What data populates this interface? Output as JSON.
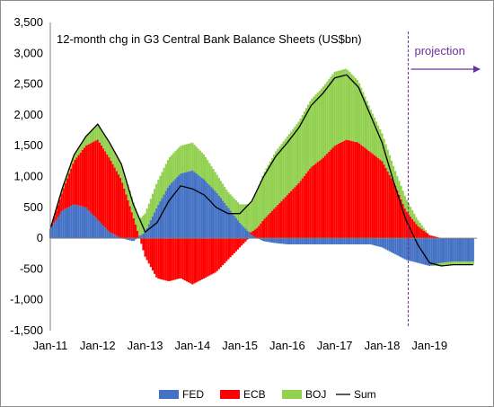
{
  "chart_data": {
    "type": "area",
    "title": "12-month chg in G3 Central Bank Balance Sheets (US$bn)",
    "xlabel": "",
    "ylabel": "",
    "ylim": [
      -1500,
      3500
    ],
    "yticks": [
      "3,500",
      "3,000",
      "2,500",
      "2,000",
      "1,500",
      "1,000",
      "500",
      "0",
      "-500",
      "-1,000",
      "-1,500"
    ],
    "ytick_values": [
      3500,
      3000,
      2500,
      2000,
      1500,
      1000,
      500,
      0,
      -500,
      -1000,
      -1500
    ],
    "xlim": [
      2011.0,
      2020.0
    ],
    "xticks": [
      "Jan-11",
      "Jan-12",
      "Jan-13",
      "Jan-14",
      "Jan-15",
      "Jan-16",
      "Jan-17",
      "Jan-18",
      "Jan-19"
    ],
    "xtick_values": [
      2011,
      2012,
      2013,
      2014,
      2015,
      2016,
      2017,
      2018,
      2019
    ],
    "stacked": true,
    "grid": false,
    "legend_position": "bottom-center",
    "annotation": {
      "text": "projection",
      "x": 2018.55,
      "color": "#7030a0"
    },
    "x": [
      2011.0,
      2011.25,
      2011.5,
      2011.75,
      2012.0,
      2012.25,
      2012.5,
      2012.75,
      2013.0,
      2013.25,
      2013.5,
      2013.75,
      2014.0,
      2014.25,
      2014.5,
      2014.75,
      2015.0,
      2015.25,
      2015.5,
      2015.75,
      2016.0,
      2016.25,
      2016.5,
      2016.75,
      2017.0,
      2017.25,
      2017.5,
      2017.75,
      2018.0,
      2018.25,
      2018.5,
      2018.75,
      2019.0,
      2019.25,
      2019.5,
      2019.75,
      2019.92
    ],
    "series": [
      {
        "name": "FED",
        "color": "#4472c4",
        "values": [
          150,
          450,
          550,
          500,
          300,
          100,
          0,
          -50,
          100,
          500,
          850,
          1050,
          1100,
          950,
          750,
          500,
          250,
          50,
          -50,
          -80,
          -100,
          -100,
          -100,
          -100,
          -100,
          -100,
          -100,
          -100,
          -150,
          -250,
          -350,
          -400,
          -450,
          -400,
          -380,
          -380,
          -380
        ]
      },
      {
        "name": "ECB",
        "color": "#ff0000",
        "values": [
          0,
          300,
          700,
          1000,
          1300,
          1200,
          950,
          350,
          -300,
          -650,
          -700,
          -650,
          -750,
          -650,
          -550,
          -350,
          -150,
          50,
          300,
          500,
          700,
          900,
          1150,
          1300,
          1500,
          1600,
          1550,
          1400,
          1250,
          900,
          450,
          200,
          50,
          0,
          0,
          0,
          0
        ]
      },
      {
        "name": "BOJ",
        "color": "#92d050",
        "values": [
          0,
          50,
          100,
          150,
          250,
          250,
          250,
          250,
          300,
          400,
          450,
          450,
          450,
          400,
          300,
          250,
          300,
          500,
          750,
          900,
          950,
          1000,
          1100,
          1150,
          1200,
          1150,
          1000,
          700,
          450,
          250,
          200,
          100,
          0,
          -50,
          -50,
          -50,
          -50
        ]
      },
      {
        "name": "Sum",
        "color": "#000000",
        "values": [
          150,
          800,
          1350,
          1650,
          1850,
          1550,
          1200,
          550,
          100,
          250,
          600,
          850,
          800,
          700,
          500,
          400,
          400,
          600,
          1000,
          1320,
          1550,
          1800,
          2150,
          2350,
          2600,
          2650,
          2450,
          2000,
          1550,
          900,
          300,
          -100,
          -400,
          -450,
          -430,
          -430,
          -430
        ]
      }
    ]
  }
}
